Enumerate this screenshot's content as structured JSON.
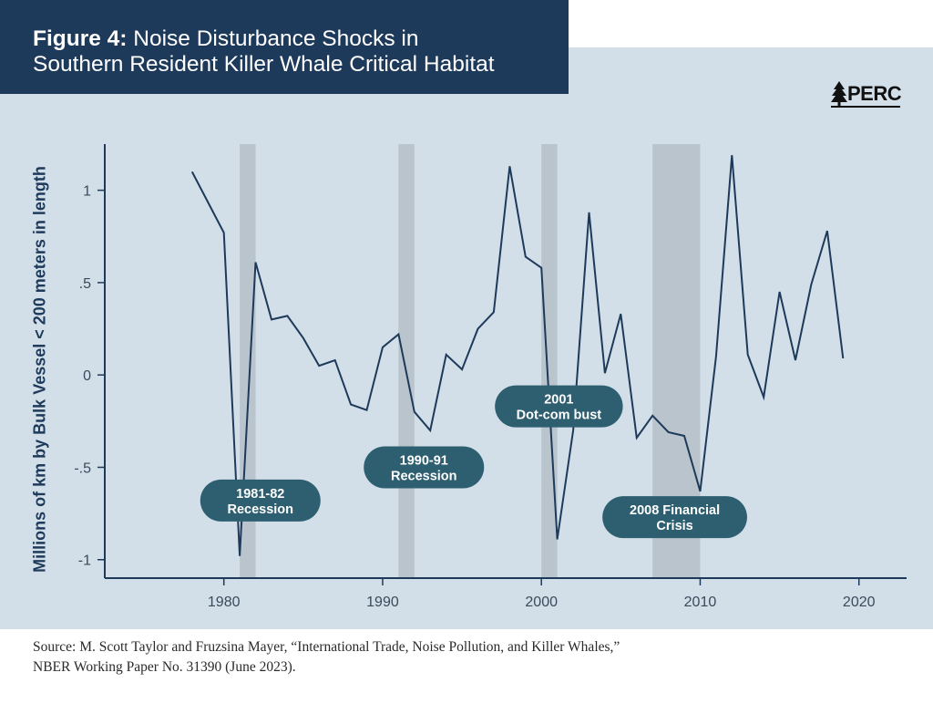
{
  "header": {
    "title_bold": "Figure 4:",
    "title_line1_rest": " Noise Disturbance Shocks in",
    "title_line2": "Southern Resident Killer Whale Critical Habitat"
  },
  "logo": {
    "text": "PERC",
    "icon": "pine-tree-icon"
  },
  "source": {
    "line1": "Source: M. Scott Taylor and Fruzsina Mayer, “International Trade, Noise Pollution, and Killer Whales,”",
    "line2": "NBER Working Paper No. 31390 (June 2023)."
  },
  "colors": {
    "title_bg": "#1e3a5a",
    "plot_bg": "#d2dfe8",
    "line": "#1e3a5a",
    "pill": "#2d5f70",
    "recession_band": "#b9c4cd"
  },
  "chart_data": {
    "type": "line",
    "title": "Noise Disturbance Shocks in Southern Resident Killer Whale Critical Habitat",
    "xlabel": "",
    "ylabel": "Millions of km by Bulk Vessel < 200 meters in length",
    "xlim": [
      1972.5,
      2023
    ],
    "ylim": [
      -1.1,
      1.25
    ],
    "xticks": [
      1980,
      1990,
      2000,
      2010,
      2020
    ],
    "xtick_labels": [
      "1980",
      "1990",
      "2000",
      "2010",
      "2020"
    ],
    "yticks": [
      1,
      0.5,
      0,
      -0.5,
      -1
    ],
    "ytick_labels": [
      "1",
      ".5",
      "0",
      "-.5",
      "-1"
    ],
    "grid": false,
    "series": [
      {
        "x": [
          1978,
          1980,
          1981,
          1982,
          1983,
          1984,
          1985,
          1986,
          1987,
          1988,
          1989,
          1990,
          1991,
          1992,
          1993,
          1994,
          1995,
          1996,
          1997,
          1998,
          1999,
          2000,
          2001,
          2002,
          2003,
          2004,
          2005,
          2006,
          2007,
          2008,
          2009,
          2010,
          2011,
          2012,
          2013,
          2014,
          2015,
          2016,
          2017,
          2018,
          2019
        ],
        "y": [
          1.1,
          0.77,
          -0.98,
          0.61,
          0.3,
          0.32,
          0.2,
          0.05,
          0.08,
          -0.16,
          -0.19,
          0.15,
          0.22,
          -0.2,
          -0.3,
          0.11,
          0.03,
          0.25,
          0.34,
          1.13,
          0.64,
          0.58,
          -0.89,
          -0.3,
          0.88,
          0.01,
          0.33,
          -0.34,
          -0.22,
          -0.31,
          -0.33,
          -0.63,
          0.1,
          1.19,
          0.11,
          -0.12,
          0.45,
          0.08,
          0.49,
          0.78,
          0.09
        ]
      }
    ],
    "recession_bands": [
      {
        "start": 1981,
        "end": 1982
      },
      {
        "start": 1991,
        "end": 1992
      },
      {
        "start": 2000,
        "end": 2001
      },
      {
        "start": 2007,
        "end": 2010
      }
    ],
    "annotations": [
      {
        "lines": [
          "1981-82",
          "Recession"
        ],
        "x": 1982.3,
        "y": -0.68
      },
      {
        "lines": [
          "1990-91",
          "Recession"
        ],
        "x": 1992.6,
        "y": -0.5
      },
      {
        "lines": [
          "2001",
          "Dot-com bust"
        ],
        "x": 2001.1,
        "y": -0.17
      },
      {
        "lines": [
          "2008 Financial",
          "Crisis"
        ],
        "x": 2008.4,
        "y": -0.77
      }
    ]
  }
}
